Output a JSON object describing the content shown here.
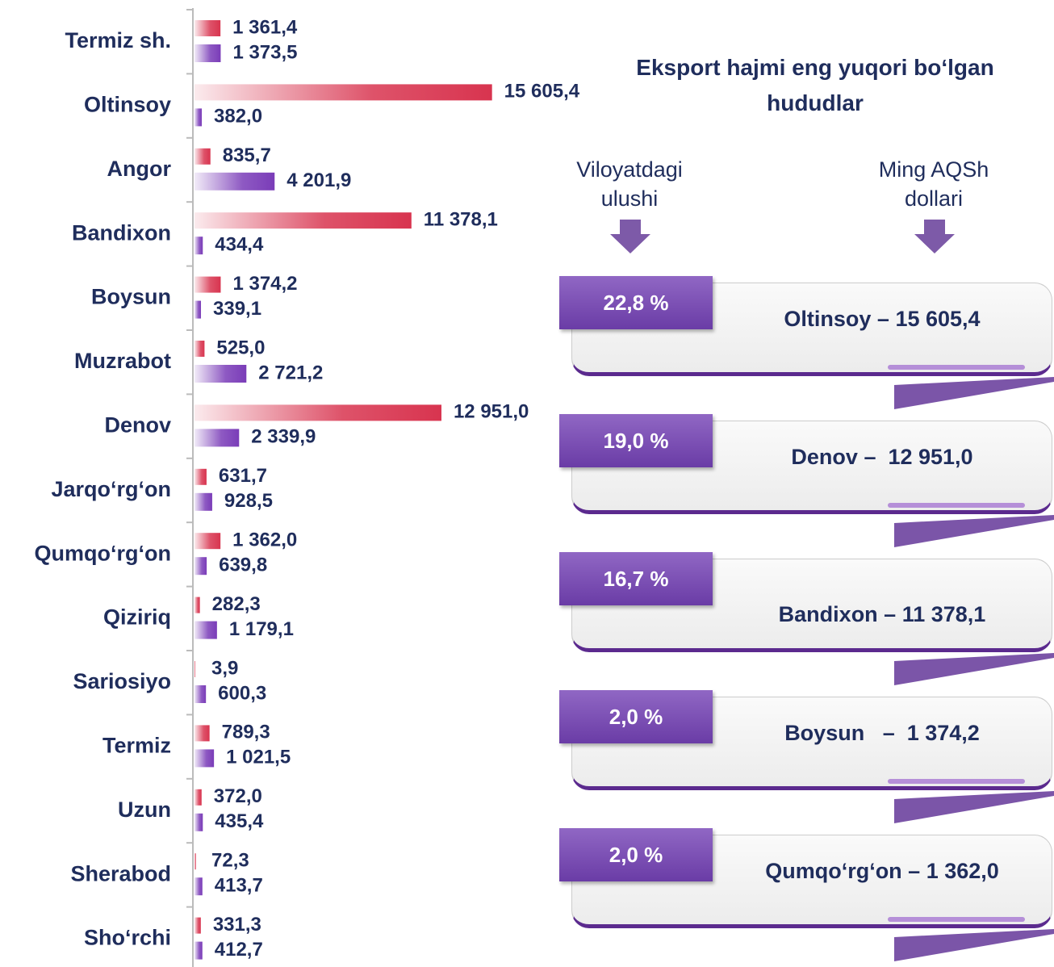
{
  "chart_data": {
    "type": "bar",
    "orientation": "horizontal",
    "categories": [
      "Termiz sh.",
      "Oltinsoy",
      "Angor",
      "Bandixon",
      "Boysun",
      "Muzrabot",
      "Denov",
      "Jarqo‘rg‘on",
      "Qumqo‘rg‘on",
      "Qiziriq",
      "Sariosiyo",
      "Termiz ",
      "Uzun",
      "Sherabod",
      "Sho‘rchi"
    ],
    "series": [
      {
        "color": "#d8344f",
        "values": [
          1361.4,
          15605.4,
          835.7,
          11378.1,
          1374.2,
          525.0,
          12951.0,
          631.7,
          1362.0,
          282.3,
          3.9,
          789.3,
          372.0,
          72.3,
          331.3
        ],
        "value_labels": [
          "1 361,4",
          "15 605,4",
          "835,7",
          "11 378,1",
          "1 374,2",
          "525,0",
          "12 951,0",
          "631,7",
          "1 362,0",
          "282,3",
          "3,9",
          "789,3",
          "372,0",
          "72,3",
          "331,3"
        ]
      },
      {
        "color": "#7a3cb8",
        "values": [
          1373.5,
          382.0,
          4201.9,
          434.4,
          339.1,
          2721.2,
          2339.9,
          928.5,
          639.8,
          1179.1,
          600.3,
          1021.5,
          435.4,
          413.7,
          412.7
        ],
        "value_labels": [
          "1 373,5",
          "382,0",
          "4 201,9",
          "434,4",
          "339,1",
          "2 721,2",
          "2 339,9",
          "928,5",
          "639,8",
          "1 179,1",
          "600,3",
          "1 021,5",
          "435,4",
          "413,7",
          "412,7"
        ]
      }
    ],
    "xlim": [
      0,
      16000
    ]
  },
  "panel": {
    "title": "Eksport hajmi eng yuqori bo‘lgan hududlar",
    "headers": [
      "Viloyatdagi ulushi",
      "Ming AQSh dollari"
    ],
    "items": [
      {
        "share": "22,8 %",
        "label": "Oltinsoy – 15 605,4"
      },
      {
        "share": "19,0 %",
        "label": "Denov –  12 951,0"
      },
      {
        "share": "16,7 %",
        "label": "Bandixon – 11 378,1"
      },
      {
        "share": "2,0 %",
        "label": "Boysun   –  1 374,2"
      },
      {
        "share": "2,0 %",
        "label": "Qumqo‘rg‘on – 1 362,0"
      }
    ]
  }
}
